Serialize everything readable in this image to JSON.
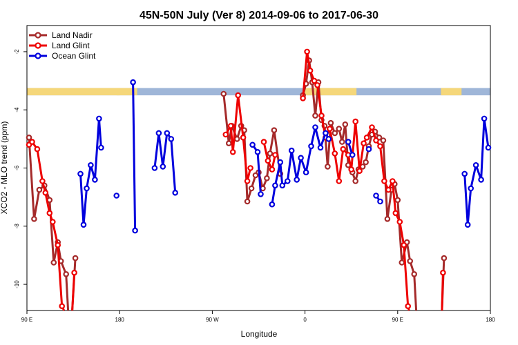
{
  "chart_data": {
    "type": "line",
    "title": "45N-50N July (Ver 8)   2014-09-06 to 2017-06-30",
    "xlabel": "Longitude",
    "ylabel": "XCO2 - MLO trend (ppm)",
    "xlim": [
      -90,
      360
    ],
    "ylim": [
      -10.9,
      -1.1
    ],
    "x_ticks": [
      {
        "value": -90,
        "label": "90 E"
      },
      {
        "value": 0,
        "label": "180"
      },
      {
        "value": 90,
        "label": "90 W"
      },
      {
        "value": 180,
        "label": "0"
      },
      {
        "value": 270,
        "label": "90 E"
      },
      {
        "value": 360,
        "label": "180"
      }
    ],
    "y_ticks": [
      {
        "value": -2,
        "label": "-2"
      },
      {
        "value": -4,
        "label": "-4"
      },
      {
        "value": -6,
        "label": "-6"
      },
      {
        "value": -8,
        "label": "-8"
      },
      {
        "value": -10,
        "label": "-10"
      }
    ],
    "band": {
      "y_top": -3.25,
      "y_bottom": -3.5,
      "land_color": "#f5d77a",
      "ocean_color": "#9fb6d8",
      "land_segments": [
        [
          -90,
          17
        ],
        [
          -3,
          0
        ],
        [
          178,
          230
        ],
        [
          312,
          332
        ]
      ]
    },
    "legend_position": "top-left",
    "series": [
      {
        "name": "Land Nadir",
        "color": "#a52a2a",
        "segments": [
          [
            [
              -88,
              -4.95
            ],
            [
              -83,
              -7.75
            ],
            [
              -78,
              -6.75
            ],
            [
              -73,
              -6.6
            ],
            [
              -68,
              -7.1
            ],
            [
              -64,
              -9.25
            ],
            [
              -60,
              -8.55
            ],
            [
              -57,
              -9.2
            ],
            [
              -52,
              -9.65
            ],
            [
              -50,
              -10.9
            ]
          ],
          [
            [
              -46,
              -10.9
            ],
            [
              -43,
              -9.1
            ]
          ],
          [
            [
              101,
              -3.45
            ],
            [
              106,
              -5.15
            ],
            [
              109,
              -4.55
            ],
            [
              114,
              -5.0
            ],
            [
              118,
              -4.55
            ],
            [
              121,
              -4.7
            ],
            [
              124,
              -7.15
            ],
            [
              128,
              -6.7
            ],
            [
              132,
              -6.25
            ],
            [
              135,
              -6.15
            ],
            [
              139,
              -6.7
            ],
            [
              143,
              -6.35
            ],
            [
              146,
              -5.5
            ],
            [
              150,
              -4.7
            ],
            [
              156,
              -6.2
            ]
          ],
          [
            [
              178,
              -3.5
            ],
            [
              181,
              -3.1
            ],
            [
              184,
              -2.3
            ],
            [
              187,
              -3.05
            ],
            [
              190,
              -4.2
            ],
            [
              193,
              -3.05
            ],
            [
              196,
              -4.35
            ],
            [
              199,
              -4.55
            ],
            [
              202,
              -5.95
            ],
            [
              205,
              -4.45
            ],
            [
              209,
              -4.8
            ],
            [
              213,
              -4.65
            ],
            [
              216,
              -5.1
            ],
            [
              219,
              -4.5
            ],
            [
              222,
              -5.9
            ],
            [
              226,
              -6.15
            ],
            [
              229,
              -6.45
            ],
            [
              232,
              -6.05
            ],
            [
              236,
              -5.95
            ],
            [
              239,
              -5.8
            ],
            [
              242,
              -5.25
            ],
            [
              245,
              -4.85
            ],
            [
              248,
              -4.75
            ],
            [
              252,
              -4.95
            ],
            [
              256,
              -5.05
            ],
            [
              260,
              -7.75
            ],
            [
              264,
              -6.75
            ],
            [
              267,
              -6.55
            ],
            [
              270,
              -7.1
            ],
            [
              274,
              -9.25
            ],
            [
              279,
              -8.55
            ],
            [
              282,
              -9.2
            ],
            [
              286,
              -9.65
            ],
            [
              288,
              -10.9
            ]
          ],
          [
            [
              313,
              -10.9
            ],
            [
              315,
              -9.1
            ]
          ]
        ]
      },
      {
        "name": "Land Glint",
        "color": "#ee0000",
        "segments": [
          [
            [
              -88,
              -5.2
            ],
            [
              -85,
              -5.1
            ],
            [
              -80,
              -5.35
            ],
            [
              -75,
              -6.45
            ],
            [
              -72,
              -6.85
            ],
            [
              -68,
              -7.55
            ],
            [
              -65,
              -7.85
            ],
            [
              -60,
              -8.65
            ],
            [
              -56,
              -10.75
            ],
            [
              -54,
              -10.9
            ]
          ],
          [
            [
              -46,
              -10.9
            ],
            [
              -44,
              -9.6
            ]
          ],
          [
            [
              103,
              -4.85
            ],
            [
              108,
              -4.55
            ],
            [
              110,
              -5.45
            ],
            [
              115,
              -3.5
            ],
            [
              120,
              -4.95
            ],
            [
              124,
              -6.45
            ],
            [
              127,
              -6.0
            ]
          ],
          [
            [
              140,
              -5.1
            ],
            [
              144,
              -5.75
            ],
            [
              148,
              -6.05
            ],
            [
              151,
              -5.55
            ]
          ],
          [
            [
              178,
              -3.6
            ],
            [
              182,
              -2.0
            ],
            [
              185,
              -2.65
            ],
            [
              189,
              -3.0
            ],
            [
              192,
              -3.15
            ],
            [
              196,
              -4.2
            ],
            [
              200,
              -4.95
            ],
            [
              204,
              -4.65
            ],
            [
              209,
              -5.5
            ],
            [
              213,
              -6.45
            ],
            [
              217,
              -5.35
            ],
            [
              222,
              -5.55
            ],
            [
              225,
              -6.05
            ],
            [
              229,
              -4.4
            ],
            [
              233,
              -6.1
            ],
            [
              237,
              -5.15
            ],
            [
              240,
              -4.95
            ],
            [
              245,
              -4.6
            ],
            [
              249,
              -5.05
            ],
            [
              253,
              -5.25
            ],
            [
              257,
              -6.45
            ],
            [
              261,
              -6.75
            ],
            [
              265,
              -6.45
            ],
            [
              268,
              -7.55
            ],
            [
              272,
              -7.85
            ],
            [
              276,
              -8.65
            ],
            [
              280,
              -10.75
            ],
            [
              281,
              -10.9
            ]
          ],
          [
            [
              313,
              -10.9
            ],
            [
              314,
              -9.6
            ]
          ]
        ]
      },
      {
        "name": "Ocean Glint",
        "color": "#0000dd",
        "segments": [
          [
            [
              -38,
              -6.2
            ],
            [
              -35,
              -7.95
            ],
            [
              -32,
              -6.7
            ],
            [
              -28,
              -5.9
            ],
            [
              -24,
              -6.4
            ],
            [
              -20,
              -4.3
            ],
            [
              -18,
              -5.3
            ]
          ],
          [
            [
              -3,
              -6.95
            ]
          ],
          [
            [
              13,
              -3.05
            ],
            [
              15,
              -8.15
            ]
          ],
          [
            [
              34,
              -6.0
            ],
            [
              38,
              -4.8
            ],
            [
              42,
              -5.95
            ],
            [
              46,
              -4.8
            ],
            [
              50,
              -5.0
            ],
            [
              54,
              -6.85
            ]
          ],
          [
            [
              129,
              -5.2
            ],
            [
              134,
              -5.45
            ],
            [
              137,
              -6.9
            ]
          ],
          [
            [
              148,
              -7.25
            ],
            [
              151,
              -6.6
            ],
            [
              156,
              -5.8
            ],
            [
              158,
              -6.6
            ],
            [
              163,
              -6.45
            ],
            [
              167,
              -5.4
            ],
            [
              172,
              -6.4
            ],
            [
              176,
              -5.65
            ],
            [
              181,
              -6.15
            ],
            [
              186,
              -5.25
            ],
            [
              190,
              -4.6
            ],
            [
              195,
              -5.3
            ],
            [
              200,
              -4.8
            ],
            [
              203,
              -5.0
            ]
          ],
          [
            [
              222,
              -5.1
            ],
            [
              226,
              -5.55
            ]
          ],
          [
            [
              242,
              -5.35
            ]
          ],
          [
            [
              249,
              -6.95
            ],
            [
              253,
              -7.15
            ]
          ],
          [
            [
              335,
              -6.2
            ],
            [
              338,
              -7.95
            ],
            [
              341,
              -6.7
            ],
            [
              346,
              -5.9
            ],
            [
              351,
              -6.4
            ],
            [
              354,
              -4.3
            ],
            [
              358,
              -5.3
            ]
          ]
        ]
      }
    ]
  }
}
